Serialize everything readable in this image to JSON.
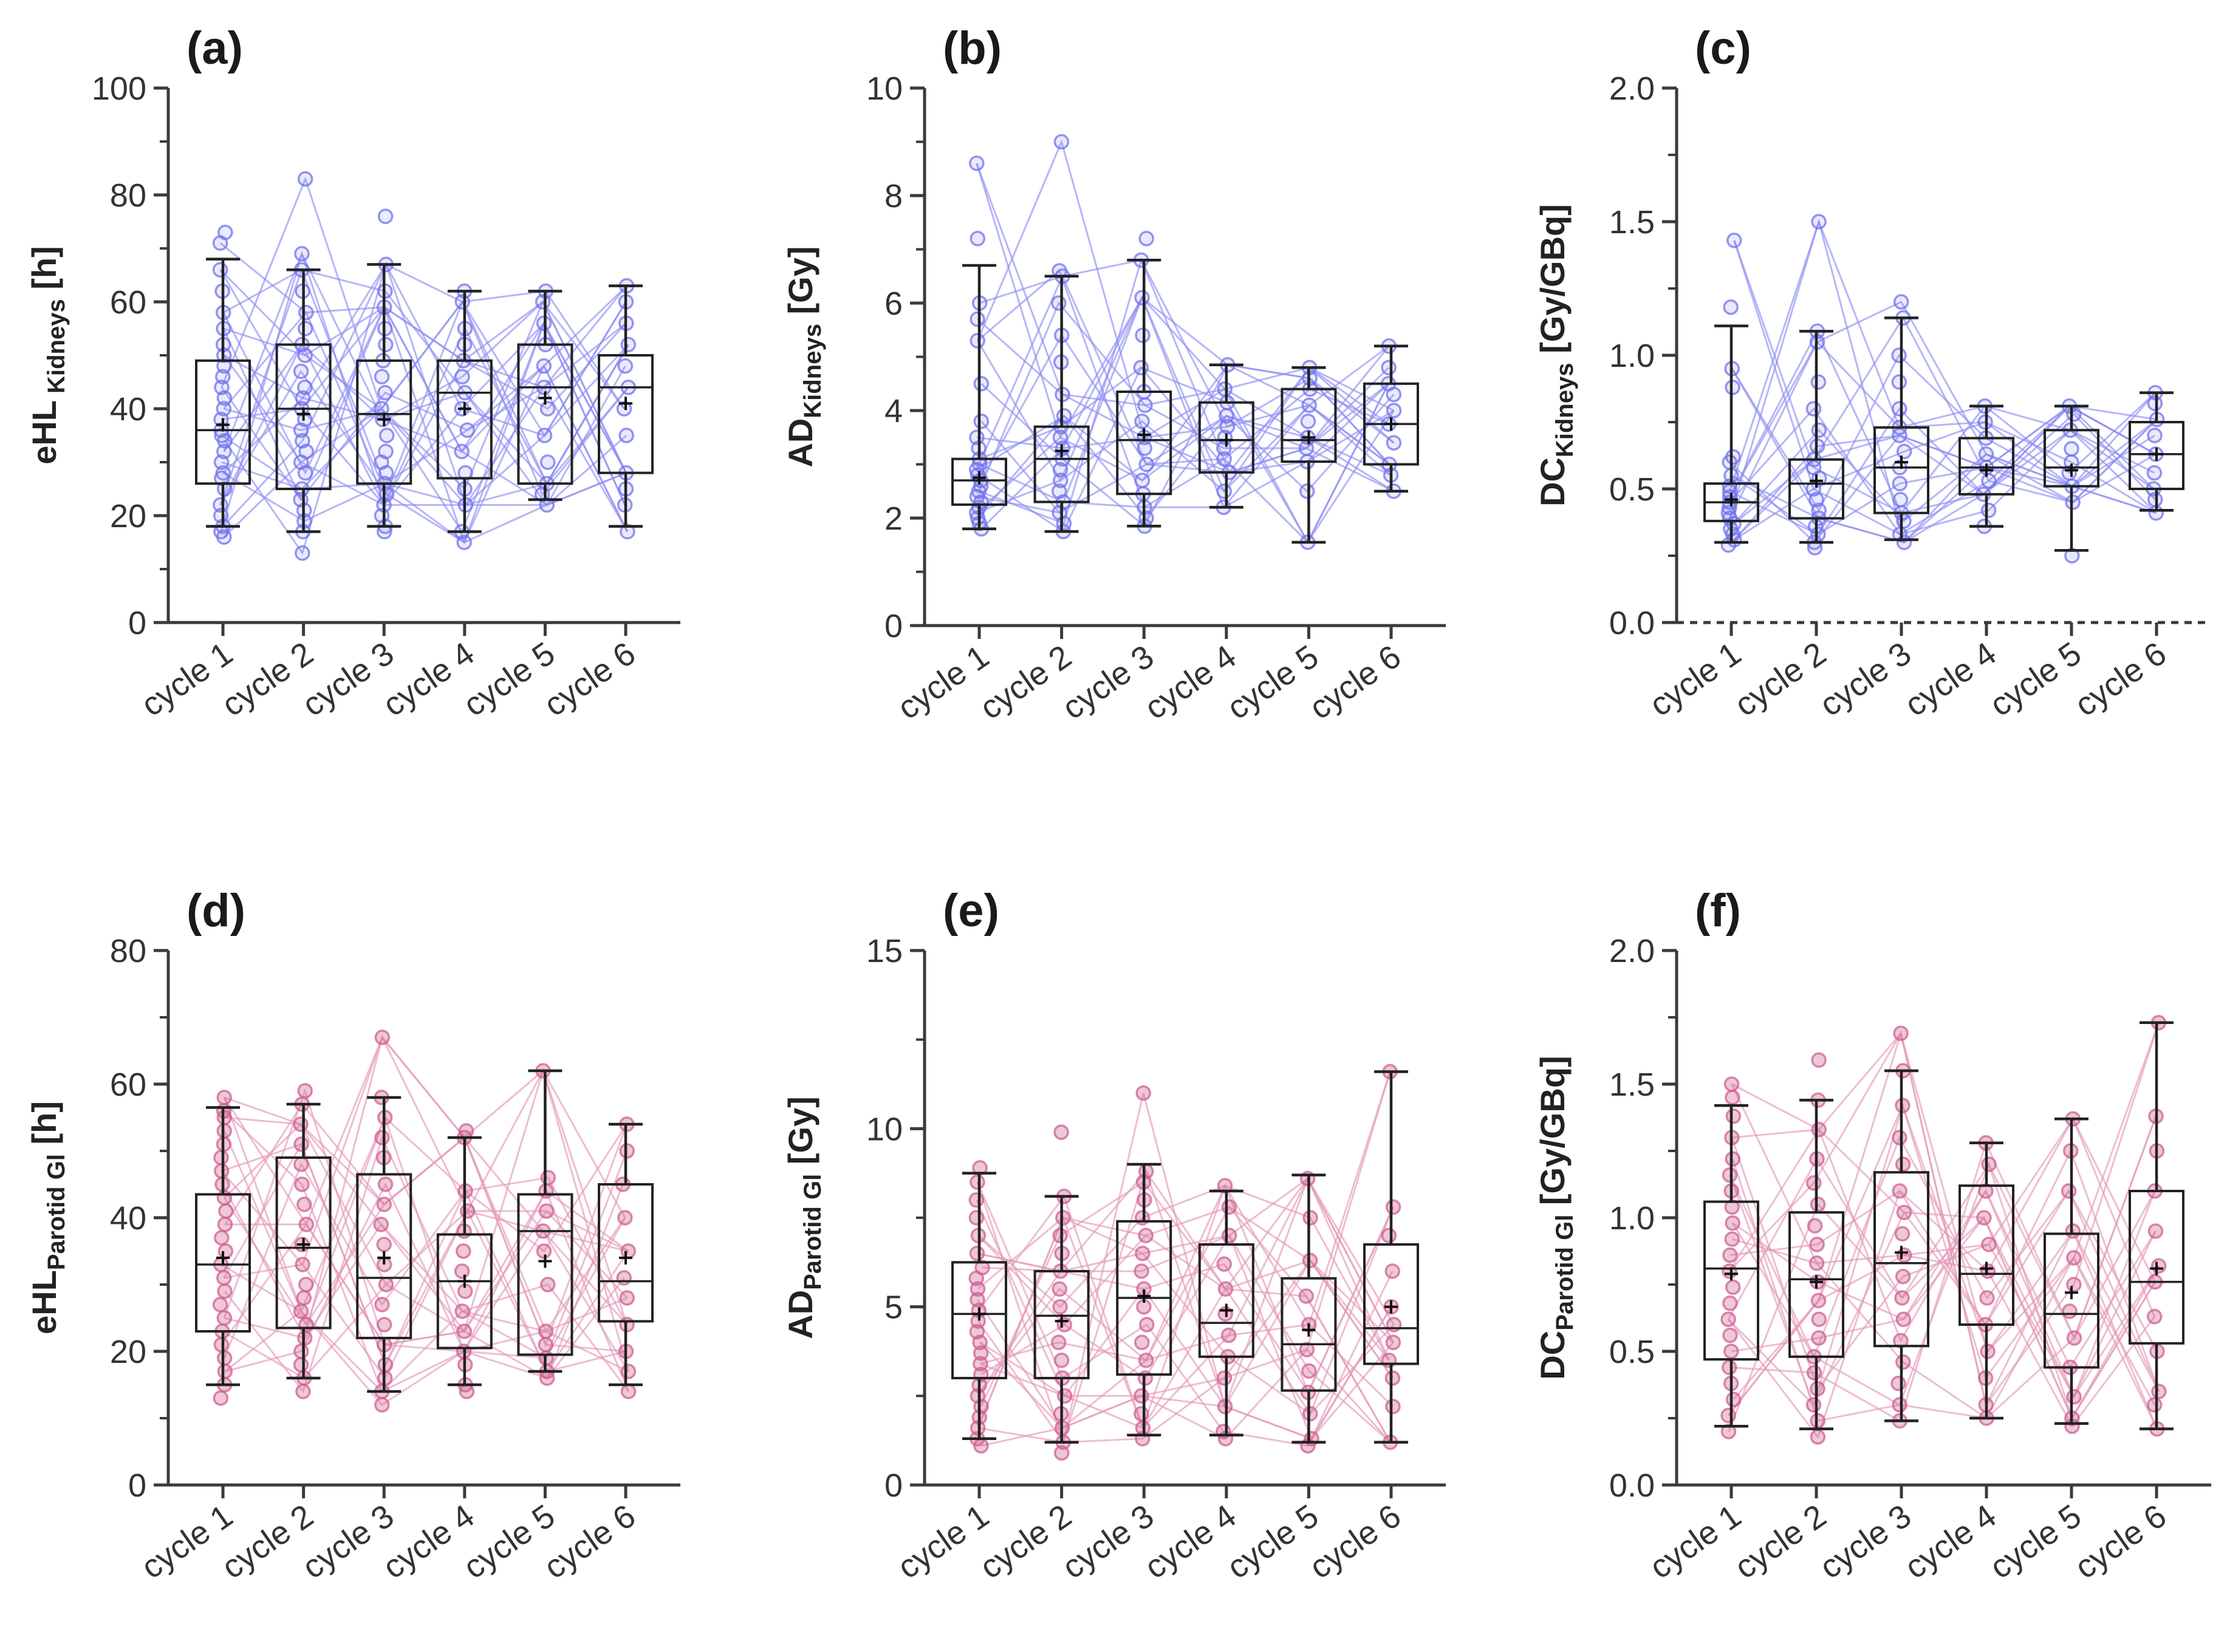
{
  "chart_data": [
    {
      "panel": "(a)",
      "type": "box",
      "theme": "blue",
      "ylabel": {
        "main": "eHL",
        "sub": " Kidneys",
        "unit": " [h]"
      },
      "ylim": [
        0,
        100
      ],
      "yticks": [
        0,
        20,
        40,
        60,
        80,
        100
      ],
      "yticklabels": [
        "0",
        "20",
        "40",
        "60",
        "80",
        "100"
      ],
      "categories": [
        "cycle 1",
        "cycle 2",
        "cycle 3",
        "cycle 4",
        "cycle 5",
        "cycle 6"
      ],
      "dashed_zero": false,
      "boxes": [
        {
          "low": 18,
          "q1": 26,
          "median": 36,
          "q3": 49,
          "high": 68,
          "mean": 37
        },
        {
          "low": 17,
          "q1": 25,
          "median": 40,
          "q3": 52,
          "high": 66,
          "mean": 39
        },
        {
          "low": 18,
          "q1": 26,
          "median": 39,
          "q3": 49,
          "high": 67,
          "mean": 38
        },
        {
          "low": 17,
          "q1": 27,
          "median": 43,
          "q3": 49,
          "high": 62,
          "mean": 40
        },
        {
          "low": 23,
          "q1": 26,
          "median": 44,
          "q3": 52,
          "high": 62,
          "mean": 42
        },
        {
          "low": 18,
          "q1": 28,
          "median": 44,
          "q3": 50,
          "high": 63,
          "mean": 41
        }
      ],
      "points": [
        [
          16,
          17,
          18,
          20,
          22,
          25,
          27,
          28,
          30,
          32,
          34,
          35,
          36,
          38,
          40,
          42,
          44,
          46,
          48,
          50,
          52,
          55,
          58,
          62,
          66,
          71,
          73
        ],
        [
          13,
          17,
          19,
          21,
          23,
          25,
          28,
          30,
          32,
          34,
          36,
          38,
          40,
          42,
          44,
          47,
          50,
          52,
          55,
          58,
          62,
          66,
          69,
          83
        ],
        [
          17,
          18,
          20,
          22,
          24,
          26,
          28,
          30,
          32,
          35,
          38,
          40,
          43,
          46,
          49,
          52,
          55,
          59,
          62,
          67,
          76
        ],
        [
          15,
          17,
          22,
          25,
          28,
          32,
          36,
          40,
          43,
          46,
          49,
          52,
          55,
          60,
          62
        ],
        [
          22,
          24,
          26,
          30,
          35,
          40,
          44,
          48,
          52,
          56,
          60,
          62
        ],
        [
          17,
          22,
          25,
          28,
          35,
          40,
          44,
          48,
          52,
          56,
          60,
          63
        ]
      ]
    },
    {
      "panel": "(b)",
      "type": "box",
      "theme": "blue",
      "ylabel": {
        "main": "AD",
        "sub": "Kidneys",
        "unit": " [Gy]"
      },
      "ylim": [
        0,
        10
      ],
      "yticks": [
        0,
        2,
        4,
        6,
        8,
        10
      ],
      "yticklabels": [
        "0",
        "2",
        "4",
        "6",
        "8",
        "10"
      ],
      "categories": [
        "cycle 1",
        "cycle 2",
        "cycle 3",
        "cycle 4",
        "cycle 5",
        "cycle 6"
      ],
      "dashed_zero": false,
      "boxes": [
        {
          "low": 1.8,
          "q1": 2.25,
          "median": 2.7,
          "q3": 3.1,
          "high": 6.7,
          "mean": 2.75
        },
        {
          "low": 1.75,
          "q1": 2.3,
          "median": 3.1,
          "q3": 3.7,
          "high": 6.5,
          "mean": 3.25
        },
        {
          "low": 1.85,
          "q1": 2.45,
          "median": 3.45,
          "q3": 4.35,
          "high": 6.8,
          "mean": 3.55
        },
        {
          "low": 2.2,
          "q1": 2.85,
          "median": 3.45,
          "q3": 4.15,
          "high": 4.85,
          "mean": 3.45
        },
        {
          "low": 1.55,
          "q1": 3.05,
          "median": 3.45,
          "q3": 4.4,
          "high": 4.8,
          "mean": 3.5
        },
        {
          "low": 2.5,
          "q1": 3.0,
          "median": 3.75,
          "q3": 4.5,
          "high": 5.2,
          "mean": 3.75
        }
      ],
      "points": [
        [
          1.8,
          1.9,
          2.0,
          2.1,
          2.2,
          2.3,
          2.4,
          2.5,
          2.6,
          2.7,
          2.8,
          2.9,
          3.0,
          3.1,
          3.3,
          3.5,
          3.8,
          4.5,
          5.3,
          5.7,
          6.0,
          7.2,
          8.6
        ],
        [
          1.75,
          1.9,
          2.1,
          2.3,
          2.5,
          2.7,
          2.9,
          3.1,
          3.3,
          3.5,
          3.7,
          3.9,
          4.3,
          4.9,
          5.4,
          6.0,
          6.5,
          6.6,
          9.0
        ],
        [
          1.85,
          2.0,
          2.2,
          2.45,
          2.7,
          3.0,
          3.3,
          3.5,
          3.8,
          4.1,
          4.35,
          4.8,
          5.4,
          6.1,
          6.8,
          7.2
        ],
        [
          2.2,
          2.5,
          2.85,
          3.1,
          3.3,
          3.5,
          3.7,
          3.9,
          4.15,
          4.4,
          4.85
        ],
        [
          1.55,
          2.5,
          3.05,
          3.3,
          3.5,
          3.8,
          4.1,
          4.4,
          4.6,
          4.8
        ],
        [
          2.5,
          2.8,
          3.0,
          3.4,
          3.75,
          4.0,
          4.3,
          4.5,
          4.8,
          5.2
        ]
      ]
    },
    {
      "panel": "(c)",
      "type": "box",
      "theme": "blue",
      "ylabel": {
        "main": "DC",
        "sub": "Kidneys",
        "unit": " [Gy/GBq]"
      },
      "ylim": [
        0,
        2
      ],
      "yticks": [
        0,
        0.5,
        1,
        1.5,
        2
      ],
      "yticklabels": [
        "0.0",
        "0.5",
        "1.0",
        "1.5",
        "2.0"
      ],
      "categories": [
        "cycle 1",
        "cycle 2",
        "cycle 3",
        "cycle 4",
        "cycle 5",
        "cycle 6"
      ],
      "dashed_zero": true,
      "boxes": [
        {
          "low": 0.3,
          "q1": 0.38,
          "median": 0.45,
          "q3": 0.52,
          "high": 1.11,
          "mean": 0.46
        },
        {
          "low": 0.3,
          "q1": 0.39,
          "median": 0.52,
          "q3": 0.61,
          "high": 1.09,
          "mean": 0.53
        },
        {
          "low": 0.31,
          "q1": 0.41,
          "median": 0.58,
          "q3": 0.73,
          "high": 1.14,
          "mean": 0.6
        },
        {
          "low": 0.36,
          "q1": 0.48,
          "median": 0.58,
          "q3": 0.69,
          "high": 0.81,
          "mean": 0.57
        },
        {
          "low": 0.27,
          "q1": 0.51,
          "median": 0.58,
          "q3": 0.72,
          "high": 0.81,
          "mean": 0.57
        },
        {
          "low": 0.42,
          "q1": 0.5,
          "median": 0.63,
          "q3": 0.75,
          "high": 0.86,
          "mean": 0.63
        }
      ],
      "points": [
        [
          0.29,
          0.31,
          0.33,
          0.35,
          0.37,
          0.39,
          0.41,
          0.43,
          0.45,
          0.47,
          0.49,
          0.51,
          0.55,
          0.6,
          0.62,
          0.88,
          0.95,
          1.18,
          1.43
        ],
        [
          0.28,
          0.3,
          0.33,
          0.36,
          0.39,
          0.42,
          0.46,
          0.5,
          0.54,
          0.58,
          0.61,
          0.66,
          0.72,
          0.8,
          0.9,
          1.05,
          1.09,
          1.5
        ],
        [
          0.3,
          0.33,
          0.38,
          0.41,
          0.46,
          0.52,
          0.58,
          0.64,
          0.7,
          0.73,
          0.8,
          0.9,
          1.0,
          1.14,
          1.2
        ],
        [
          0.36,
          0.42,
          0.48,
          0.53,
          0.58,
          0.63,
          0.69,
          0.75,
          0.81
        ],
        [
          0.25,
          0.45,
          0.51,
          0.56,
          0.6,
          0.65,
          0.72,
          0.78,
          0.81
        ],
        [
          0.41,
          0.46,
          0.5,
          0.56,
          0.63,
          0.7,
          0.76,
          0.82,
          0.86
        ]
      ]
    },
    {
      "panel": "(d)",
      "type": "box",
      "theme": "pink",
      "ylabel": {
        "main": "eHL",
        "sub": "Parotid Gl",
        "unit": " [h]"
      },
      "ylim": [
        0,
        80
      ],
      "yticks": [
        0,
        20,
        40,
        60,
        80
      ],
      "yticklabels": [
        "0",
        "20",
        "40",
        "60",
        "80"
      ],
      "categories": [
        "cycle 1",
        "cycle 2",
        "cycle 3",
        "cycle 4",
        "cycle 5",
        "cycle 6"
      ],
      "dashed_zero": false,
      "boxes": [
        {
          "low": 15,
          "q1": 23,
          "median": 33,
          "q3": 43.5,
          "high": 56.5,
          "mean": 34
        },
        {
          "low": 16,
          "q1": 23.5,
          "median": 35.5,
          "q3": 49,
          "high": 57,
          "mean": 36
        },
        {
          "low": 14,
          "q1": 22,
          "median": 31,
          "q3": 46.5,
          "high": 58,
          "mean": 34
        },
        {
          "low": 15,
          "q1": 20.5,
          "median": 30.5,
          "q3": 37.5,
          "high": 52,
          "mean": 30.5
        },
        {
          "low": 17,
          "q1": 19.5,
          "median": 38,
          "q3": 43.5,
          "high": 62,
          "mean": 33.5
        },
        {
          "low": 15,
          "q1": 24.5,
          "median": 30.5,
          "q3": 45,
          "high": 54,
          "mean": 34
        }
      ],
      "points": [
        [
          13,
          15,
          17,
          19,
          21,
          23,
          25,
          27,
          29,
          31,
          33,
          35,
          37,
          39,
          41,
          43,
          45,
          47,
          49,
          51,
          53,
          55,
          56,
          58
        ],
        [
          14,
          16,
          18,
          20,
          22,
          24,
          26,
          28,
          30,
          33,
          36,
          39,
          42,
          45,
          48,
          51,
          54,
          57,
          59
        ],
        [
          12,
          14,
          16,
          18,
          21,
          24,
          27,
          30,
          33,
          36,
          39,
          42,
          45,
          49,
          52,
          55,
          58,
          67
        ],
        [
          14,
          15,
          18,
          20,
          23,
          26,
          29,
          32,
          35,
          38,
          41,
          44,
          52,
          53
        ],
        [
          16,
          17,
          19,
          21,
          23,
          30,
          35,
          38,
          41,
          44,
          46,
          62
        ],
        [
          14,
          17,
          20,
          24,
          28,
          31,
          35,
          40,
          45,
          50,
          54
        ]
      ]
    },
    {
      "panel": "(e)",
      "type": "box",
      "theme": "pink",
      "ylabel": {
        "main": "AD",
        "sub": "Parotid Gl",
        "unit": " [Gy]"
      },
      "ylim": [
        0,
        15
      ],
      "yticks": [
        0,
        5,
        10,
        15
      ],
      "yticklabels": [
        "0",
        "5",
        "10",
        "15"
      ],
      "categories": [
        "cycle 1",
        "cycle 2",
        "cycle 3",
        "cycle 4",
        "cycle 5",
        "cycle 6"
      ],
      "dashed_zero": false,
      "boxes": [
        {
          "low": 1.3,
          "q1": 3.0,
          "median": 4.8,
          "q3": 6.25,
          "high": 8.75,
          "mean": 4.8
        },
        {
          "low": 1.2,
          "q1": 3.0,
          "median": 4.75,
          "q3": 6.0,
          "high": 8.1,
          "mean": 4.6
        },
        {
          "low": 1.4,
          "q1": 3.1,
          "median": 5.25,
          "q3": 7.4,
          "high": 9.0,
          "mean": 5.3
        },
        {
          "low": 1.4,
          "q1": 3.6,
          "median": 4.55,
          "q3": 6.75,
          "high": 8.25,
          "mean": 4.9
        },
        {
          "low": 1.2,
          "q1": 2.65,
          "median": 3.95,
          "q3": 5.8,
          "high": 8.7,
          "mean": 4.35
        },
        {
          "low": 1.2,
          "q1": 3.4,
          "median": 4.4,
          "q3": 6.75,
          "high": 11.6,
          "mean": 5.0
        }
      ],
      "points": [
        [
          1.1,
          1.3,
          1.6,
          1.9,
          2.2,
          2.5,
          2.8,
          3.1,
          3.4,
          3.7,
          4.0,
          4.3,
          4.6,
          4.9,
          5.2,
          5.5,
          5.8,
          6.1,
          6.5,
          7.0,
          7.5,
          8.0,
          8.5,
          8.9
        ],
        [
          0.9,
          1.2,
          1.6,
          2.0,
          2.5,
          3.0,
          3.5,
          4.0,
          4.5,
          5.0,
          5.5,
          6.0,
          6.5,
          7.0,
          7.5,
          8.1,
          9.9
        ],
        [
          1.3,
          1.6,
          2.0,
          2.5,
          3.0,
          3.5,
          4.0,
          4.5,
          5.0,
          5.5,
          6.0,
          6.5,
          7.0,
          7.5,
          8.0,
          8.5,
          8.8,
          11.0
        ],
        [
          1.3,
          1.5,
          2.2,
          3.0,
          3.6,
          4.2,
          4.8,
          5.5,
          6.2,
          7.0,
          7.8,
          8.4
        ],
        [
          1.1,
          1.3,
          2.0,
          2.6,
          3.2,
          3.8,
          4.5,
          5.3,
          6.3,
          7.5,
          8.6
        ],
        [
          1.2,
          2.2,
          3.0,
          3.5,
          4.0,
          4.5,
          5.0,
          6.0,
          7.0,
          7.8,
          11.6
        ]
      ]
    },
    {
      "panel": "(f)",
      "type": "box",
      "theme": "pink",
      "ylabel": {
        "main": "DC",
        "sub": "Parotid Gl",
        "unit": " [Gy/GBq]"
      },
      "ylim": [
        0,
        2
      ],
      "yticks": [
        0,
        0.5,
        1,
        1.5,
        2
      ],
      "yticklabels": [
        "0.0",
        "0.5",
        "1.0",
        "1.5",
        "2.0"
      ],
      "categories": [
        "cycle 1",
        "cycle 2",
        "cycle 3",
        "cycle 4",
        "cycle 5",
        "cycle 6"
      ],
      "dashed_zero": false,
      "boxes": [
        {
          "low": 0.22,
          "q1": 0.47,
          "median": 0.81,
          "q3": 1.06,
          "high": 1.42,
          "mean": 0.79
        },
        {
          "low": 0.21,
          "q1": 0.48,
          "median": 0.77,
          "q3": 1.02,
          "high": 1.44,
          "mean": 0.76
        },
        {
          "low": 0.24,
          "q1": 0.52,
          "median": 0.83,
          "q3": 1.17,
          "high": 1.55,
          "mean": 0.87
        },
        {
          "low": 0.25,
          "q1": 0.6,
          "median": 0.79,
          "q3": 1.12,
          "high": 1.28,
          "mean": 0.81
        },
        {
          "low": 0.23,
          "q1": 0.44,
          "median": 0.64,
          "q3": 0.94,
          "high": 1.37,
          "mean": 0.72
        },
        {
          "low": 0.21,
          "q1": 0.53,
          "median": 0.76,
          "q3": 1.1,
          "high": 1.73,
          "mean": 0.81
        }
      ],
      "points": [
        [
          0.2,
          0.26,
          0.32,
          0.38,
          0.44,
          0.5,
          0.56,
          0.62,
          0.68,
          0.74,
          0.8,
          0.86,
          0.92,
          0.98,
          1.04,
          1.1,
          1.16,
          1.22,
          1.3,
          1.38,
          1.45,
          1.5
        ],
        [
          0.18,
          0.24,
          0.3,
          0.36,
          0.42,
          0.48,
          0.55,
          0.62,
          0.69,
          0.76,
          0.83,
          0.9,
          0.97,
          1.05,
          1.13,
          1.22,
          1.33,
          1.44,
          1.59
        ],
        [
          0.24,
          0.3,
          0.38,
          0.46,
          0.54,
          0.62,
          0.7,
          0.78,
          0.86,
          0.94,
          1.02,
          1.1,
          1.2,
          1.3,
          1.42,
          1.55,
          1.69
        ],
        [
          0.25,
          0.3,
          0.4,
          0.5,
          0.6,
          0.7,
          0.8,
          0.9,
          1.0,
          1.1,
          1.2,
          1.28
        ],
        [
          0.22,
          0.25,
          0.33,
          0.44,
          0.55,
          0.65,
          0.75,
          0.85,
          0.95,
          1.1,
          1.25,
          1.37
        ],
        [
          0.21,
          0.3,
          0.35,
          0.5,
          0.63,
          0.76,
          0.82,
          0.95,
          1.1,
          1.25,
          1.38,
          1.73
        ]
      ]
    }
  ],
  "colors": {
    "blue_line": "#8d8ff2",
    "blue_point": "#6f72ee",
    "pink_line": "#e39ab9",
    "pink_point": "#cf5f90",
    "axis": "#3a3a3a",
    "box": "#222222"
  }
}
